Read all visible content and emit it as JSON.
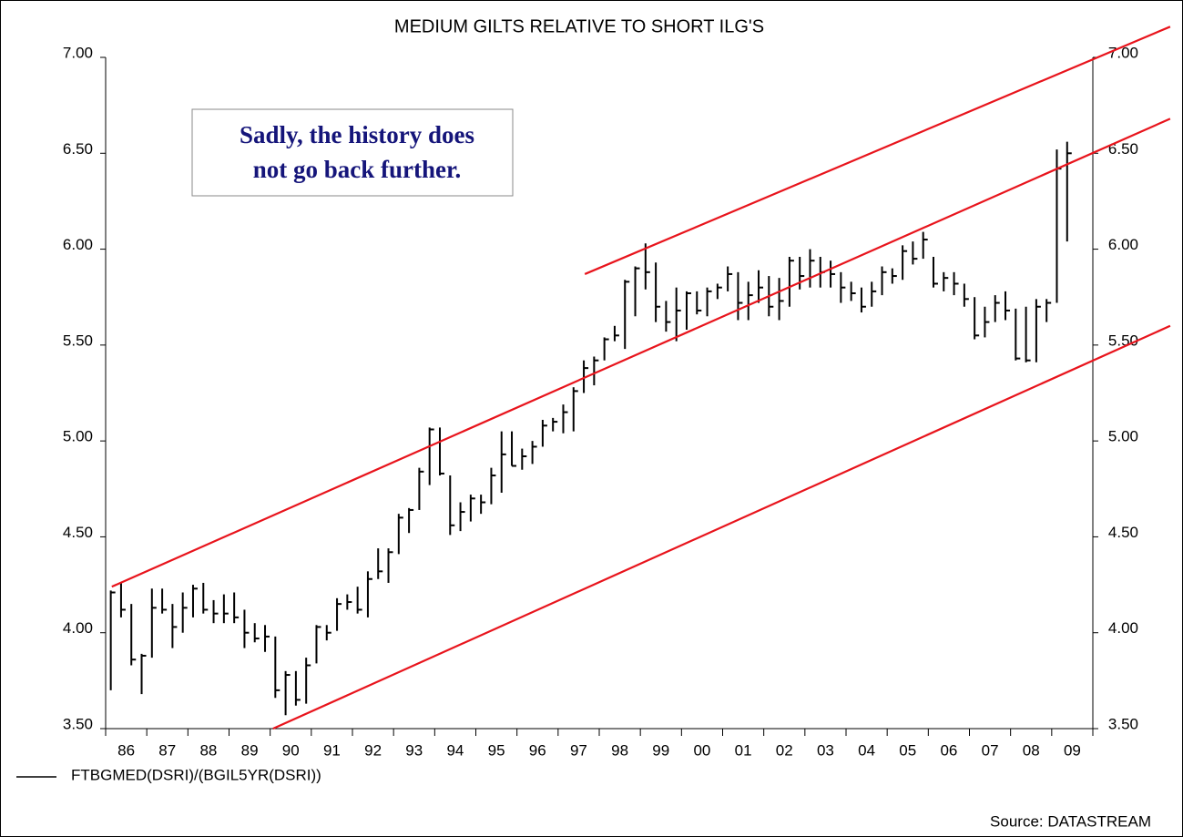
{
  "chart_data": {
    "type": "hlc",
    "title": "MEDIUM GILTS RELATIVE TO SHORT ILG'S",
    "annotation": [
      "Sadly, the history does",
      "not go back further."
    ],
    "source": "Source: DATASTREAM",
    "xlim": [
      1986,
      2010
    ],
    "xticks": [
      {
        "value": 1986.5,
        "label": "86"
      },
      {
        "value": 1987.5,
        "label": "87"
      },
      {
        "value": 1988.5,
        "label": "88"
      },
      {
        "value": 1989.5,
        "label": "89"
      },
      {
        "value": 1990.5,
        "label": "90"
      },
      {
        "value": 1991.5,
        "label": "91"
      },
      {
        "value": 1992.5,
        "label": "92"
      },
      {
        "value": 1993.5,
        "label": "93"
      },
      {
        "value": 1994.5,
        "label": "94"
      },
      {
        "value": 1995.5,
        "label": "95"
      },
      {
        "value": 1996.5,
        "label": "96"
      },
      {
        "value": 1997.5,
        "label": "97"
      },
      {
        "value": 1998.5,
        "label": "98"
      },
      {
        "value": 1999.5,
        "label": "99"
      },
      {
        "value": 2000.5,
        "label": "00"
      },
      {
        "value": 2001.5,
        "label": "01"
      },
      {
        "value": 2002.5,
        "label": "02"
      },
      {
        "value": 2003.5,
        "label": "03"
      },
      {
        "value": 2004.5,
        "label": "04"
      },
      {
        "value": 2005.5,
        "label": "05"
      },
      {
        "value": 2006.5,
        "label": "06"
      },
      {
        "value": 2007.5,
        "label": "07"
      },
      {
        "value": 2008.5,
        "label": "08"
      },
      {
        "value": 2009.5,
        "label": "09"
      }
    ],
    "ylim": [
      3.5,
      7.0
    ],
    "yticks": [
      {
        "value": 3.5,
        "label": "3.50"
      },
      {
        "value": 4.0,
        "label": "4.00"
      },
      {
        "value": 4.5,
        "label": "4.50"
      },
      {
        "value": 5.0,
        "label": "5.00"
      },
      {
        "value": 5.5,
        "label": "5.50"
      },
      {
        "value": 6.0,
        "label": "6.00"
      },
      {
        "value": 6.5,
        "label": "6.50"
      },
      {
        "value": 7.0,
        "label": "7.00"
      }
    ],
    "x": [
      1986.125,
      1986.375,
      1986.625,
      1986.875,
      1987.125,
      1987.375,
      1987.625,
      1987.875,
      1988.125,
      1988.375,
      1988.625,
      1988.875,
      1989.125,
      1989.375,
      1989.625,
      1989.875,
      1990.125,
      1990.375,
      1990.625,
      1990.875,
      1991.125,
      1991.375,
      1991.625,
      1991.875,
      1992.125,
      1992.375,
      1992.625,
      1992.875,
      1993.125,
      1993.375,
      1993.625,
      1993.875,
      1994.125,
      1994.375,
      1994.625,
      1994.875,
      1995.125,
      1995.375,
      1995.625,
      1995.875,
      1996.125,
      1996.375,
      1996.625,
      1996.875,
      1997.125,
      1997.375,
      1997.625,
      1997.875,
      1998.125,
      1998.375,
      1998.625,
      1998.875,
      1999.125,
      1999.375,
      1999.625,
      1999.875,
      2000.125,
      2000.375,
      2000.625,
      2000.875,
      2001.125,
      2001.375,
      2001.625,
      2001.875,
      2002.125,
      2002.375,
      2002.625,
      2002.875,
      2003.125,
      2003.375,
      2003.625,
      2003.875,
      2004.125,
      2004.375,
      2004.625,
      2004.875,
      2005.125,
      2005.375,
      2005.625,
      2005.875,
      2006.125,
      2006.375,
      2006.625,
      2006.875,
      2007.125,
      2007.375,
      2007.625,
      2007.875,
      2008.125,
      2008.375,
      2008.625,
      2008.875,
      2009.125,
      2009.375
    ],
    "series": [
      {
        "name": "FTBGMED(DSRI)/(BGIL5YR(DSRI))",
        "color": "#000000",
        "high": [
          4.22,
          4.26,
          4.15,
          3.89,
          4.23,
          4.23,
          4.15,
          4.21,
          4.25,
          4.26,
          4.17,
          4.2,
          4.21,
          4.12,
          4.05,
          4.04,
          3.98,
          3.8,
          3.8,
          3.87,
          4.04,
          4.04,
          4.18,
          4.2,
          4.24,
          4.32,
          4.44,
          4.44,
          4.62,
          4.65,
          4.86,
          5.07,
          5.07,
          4.82,
          4.68,
          4.72,
          4.72,
          4.86,
          5.05,
          5.05,
          4.96,
          5.0,
          5.11,
          5.12,
          5.19,
          5.28,
          5.42,
          5.44,
          5.54,
          5.6,
          5.84,
          5.91,
          6.03,
          5.93,
          5.73,
          5.8,
          5.78,
          5.78,
          5.8,
          5.82,
          5.91,
          5.88,
          5.83,
          5.89,
          5.86,
          5.85,
          5.96,
          5.96,
          6.0,
          5.96,
          5.94,
          5.88,
          5.83,
          5.8,
          5.83,
          5.91,
          5.9,
          6.02,
          6.04,
          6.09,
          5.96,
          5.88,
          5.88,
          5.82,
          5.75,
          5.7,
          5.76,
          5.78,
          5.69,
          5.7,
          5.74,
          5.74,
          6.52,
          6.56
        ],
        "low": [
          3.7,
          4.08,
          3.83,
          3.68,
          3.87,
          4.1,
          3.92,
          4.0,
          4.08,
          4.1,
          4.05,
          4.05,
          4.05,
          3.92,
          3.95,
          3.9,
          3.66,
          3.57,
          3.62,
          3.63,
          3.84,
          3.96,
          4.01,
          4.12,
          4.1,
          4.08,
          4.28,
          4.26,
          4.41,
          4.52,
          4.64,
          4.77,
          4.82,
          4.51,
          4.53,
          4.58,
          4.62,
          4.67,
          4.73,
          4.87,
          4.85,
          4.88,
          4.97,
          5.05,
          5.04,
          5.05,
          5.25,
          5.29,
          5.42,
          5.52,
          5.48,
          5.65,
          5.79,
          5.62,
          5.57,
          5.52,
          5.58,
          5.66,
          5.65,
          5.74,
          5.78,
          5.63,
          5.63,
          5.72,
          5.65,
          5.63,
          5.7,
          5.79,
          5.8,
          5.8,
          5.8,
          5.72,
          5.73,
          5.67,
          5.7,
          5.76,
          5.82,
          5.84,
          5.92,
          5.95,
          5.8,
          5.78,
          5.76,
          5.7,
          5.53,
          5.54,
          5.62,
          5.63,
          5.42,
          5.41,
          5.41,
          5.62,
          5.72,
          6.04
        ],
        "close": [
          4.21,
          4.12,
          3.86,
          3.88,
          4.13,
          4.12,
          4.03,
          4.13,
          4.23,
          4.12,
          4.1,
          4.1,
          4.08,
          4.0,
          3.97,
          3.98,
          3.7,
          3.78,
          3.65,
          3.83,
          4.03,
          4.0,
          4.15,
          4.16,
          4.12,
          4.28,
          4.32,
          4.42,
          4.6,
          4.64,
          4.84,
          5.06,
          4.83,
          4.56,
          4.63,
          4.7,
          4.68,
          4.82,
          4.93,
          4.87,
          4.92,
          4.97,
          5.08,
          5.1,
          5.15,
          5.26,
          5.38,
          5.42,
          5.53,
          5.55,
          5.83,
          5.9,
          5.88,
          5.7,
          5.62,
          5.68,
          5.77,
          5.68,
          5.78,
          5.8,
          5.87,
          5.72,
          5.76,
          5.8,
          5.7,
          5.73,
          5.94,
          5.86,
          5.94,
          5.88,
          5.87,
          5.8,
          5.77,
          5.7,
          5.78,
          5.88,
          5.86,
          5.99,
          5.95,
          6.05,
          5.82,
          5.85,
          5.82,
          5.74,
          5.55,
          5.62,
          5.72,
          5.68,
          5.43,
          5.42,
          5.7,
          5.72,
          6.42,
          6.5
        ]
      }
    ],
    "trend_lines": [
      {
        "color": "#e8141c",
        "x": [
          1997.65,
          2011.88
        ],
        "y": [
          5.87,
          7.16
        ]
      },
      {
        "color": "#e8141c",
        "x": [
          1986.15,
          2011.88
        ],
        "y": [
          4.24,
          6.68
        ]
      },
      {
        "color": "#e8141c",
        "x": [
          1990.07,
          2011.88
        ],
        "y": [
          3.5,
          5.6
        ]
      }
    ]
  }
}
